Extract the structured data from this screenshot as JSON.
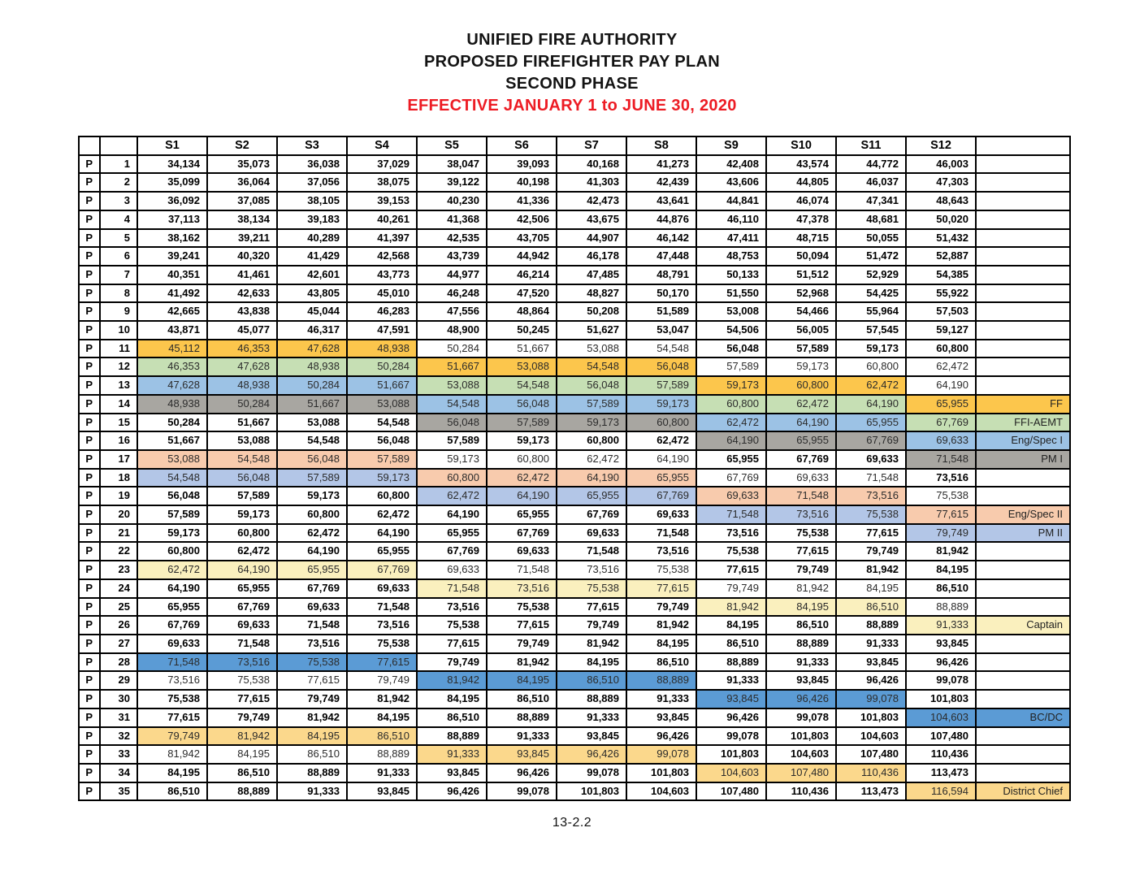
{
  "title": {
    "lines": [
      "UNIFIED FIRE AUTHORITY",
      "PROPOSED FIREFIGHTER PAY PLAN",
      "SECOND PHASE"
    ],
    "effective_line": "EFFECTIVE JANUARY 1 to JUNE 30, 2020",
    "effective_color": "#ED1C24"
  },
  "footer": {
    "page_number": "13-2.2"
  },
  "chart_data": {
    "type": "table",
    "title": "UNIFIED FIRE AUTHORITY PROPOSED FIREFIGHTER PAY PLAN SECOND PHASE — EFFECTIVE JANUARY 1 to JUNE 30, 2020",
    "row_header_letter": "P",
    "columns": [
      "S1",
      "S2",
      "S3",
      "S4",
      "S5",
      "S6",
      "S7",
      "S8",
      "S9",
      "S10",
      "S11",
      "S12"
    ],
    "color_map": {
      "F": "#FCC64C",
      "A": "#C6DFB4",
      "E": "#9CC2E5",
      "P": "#A8A6A1",
      "S": "#F8CBAD",
      "M": "#B3C6E7",
      "C": "#FAF0BE",
      "B": "#5B9BD5",
      "D": "#FBD88C"
    },
    "ranks": [
      {
        "code": "F",
        "name": "FF",
        "label_row": 14
      },
      {
        "code": "A",
        "name": "FFI-AEMT",
        "label_row": 15
      },
      {
        "code": "E",
        "name": "Eng/Spec I",
        "label_row": 16
      },
      {
        "code": "P",
        "name": "PM I",
        "label_row": 17
      },
      {
        "code": "S",
        "name": "Eng/Spec II",
        "label_row": 20
      },
      {
        "code": "M",
        "name": "PM II",
        "label_row": 21
      },
      {
        "code": "C",
        "name": "Captain",
        "label_row": 26
      },
      {
        "code": "B",
        "name": "BC/DC",
        "label_row": 31
      },
      {
        "code": "D",
        "name": "District Chief",
        "label_row": 35
      }
    ],
    "rows": [
      {
        "step": 1,
        "values": [
          34134,
          35073,
          36038,
          37029,
          38047,
          39093,
          40168,
          41273,
          42408,
          43574,
          44772,
          46003
        ],
        "colors": "............",
        "weights": "bbbbbbbbbbbb",
        "label": null,
        "label_color": null
      },
      {
        "step": 2,
        "values": [
          35099,
          36064,
          37056,
          38075,
          39122,
          40198,
          41303,
          42439,
          43606,
          44805,
          46037,
          47303
        ],
        "colors": "............",
        "weights": "bbbbbbbbbbbb",
        "label": null,
        "label_color": null
      },
      {
        "step": 3,
        "values": [
          36092,
          37085,
          38105,
          39153,
          40230,
          41336,
          42473,
          43641,
          44841,
          46074,
          47341,
          48643
        ],
        "colors": "............",
        "weights": "bbbbbbbbbbbb",
        "label": null,
        "label_color": null
      },
      {
        "step": 4,
        "values": [
          37113,
          38134,
          39183,
          40261,
          41368,
          42506,
          43675,
          44876,
          46110,
          47378,
          48681,
          50020
        ],
        "colors": "............",
        "weights": "bbbbbbbbbbbb",
        "label": null,
        "label_color": null
      },
      {
        "step": 5,
        "values": [
          38162,
          39211,
          40289,
          41397,
          42535,
          43705,
          44907,
          46142,
          47411,
          48715,
          50055,
          51432
        ],
        "colors": "............",
        "weights": "bbbbbbbbbbbb",
        "label": null,
        "label_color": null
      },
      {
        "step": 6,
        "values": [
          39241,
          40320,
          41429,
          42568,
          43739,
          44942,
          46178,
          47448,
          48753,
          50094,
          51472,
          52887
        ],
        "colors": "............",
        "weights": "bbbbbbbbbbbb",
        "label": null,
        "label_color": null
      },
      {
        "step": 7,
        "values": [
          40351,
          41461,
          42601,
          43773,
          44977,
          46214,
          47485,
          48791,
          50133,
          51512,
          52929,
          54385
        ],
        "colors": "............",
        "weights": "bbbbbbbbbbbb",
        "label": null,
        "label_color": null
      },
      {
        "step": 8,
        "values": [
          41492,
          42633,
          43805,
          45010,
          46248,
          47520,
          48827,
          50170,
          51550,
          52968,
          54425,
          55922
        ],
        "colors": "............",
        "weights": "bbbbbbbbbbbb",
        "label": null,
        "label_color": null
      },
      {
        "step": 9,
        "values": [
          42665,
          43838,
          45044,
          46283,
          47556,
          48864,
          50208,
          51589,
          53008,
          54466,
          55964,
          57503
        ],
        "colors": "............",
        "weights": "bbbbbbbbbbbb",
        "label": null,
        "label_color": null
      },
      {
        "step": 10,
        "values": [
          43871,
          45077,
          46317,
          47591,
          48900,
          50245,
          51627,
          53047,
          54506,
          56005,
          57545,
          59127
        ],
        "colors": "............",
        "weights": "bbbbbbbbbbbb",
        "label": null,
        "label_color": null
      },
      {
        "step": 11,
        "values": [
          45112,
          46353,
          47628,
          48938,
          50284,
          51667,
          53088,
          54548,
          56048,
          57589,
          59173,
          60800
        ],
        "colors": "FFFF........",
        "weights": "ttttttttbbbb",
        "label": null,
        "label_color": null
      },
      {
        "step": 12,
        "values": [
          46353,
          47628,
          48938,
          50284,
          51667,
          53088,
          54548,
          56048,
          57589,
          59173,
          60800,
          62472
        ],
        "colors": "AAAAFFFF....",
        "weights": "tttttttttttt",
        "label": null,
        "label_color": null
      },
      {
        "step": 13,
        "values": [
          47628,
          48938,
          50284,
          51667,
          53088,
          54548,
          56048,
          57589,
          59173,
          60800,
          62472,
          64190
        ],
        "colors": "EEEEAAAAFFF.",
        "weights": "tttttttttttt",
        "label": null,
        "label_color": null
      },
      {
        "step": 14,
        "values": [
          48938,
          50284,
          51667,
          53088,
          54548,
          56048,
          57589,
          59173,
          60800,
          62472,
          64190,
          65955
        ],
        "colors": "PPPPEEEEAAAF",
        "weights": "tttttttttttt",
        "label": "FF",
        "label_color": "F"
      },
      {
        "step": 15,
        "values": [
          50284,
          51667,
          53088,
          54548,
          56048,
          57589,
          59173,
          60800,
          62472,
          64190,
          65955,
          67769
        ],
        "colors": "....PPPPEEEA",
        "weights": "bbbbtttttttt",
        "label": "FFI-AEMT",
        "label_color": "A"
      },
      {
        "step": 16,
        "values": [
          51667,
          53088,
          54548,
          56048,
          57589,
          59173,
          60800,
          62472,
          64190,
          65955,
          67769,
          69633
        ],
        "colors": "........PPPE",
        "weights": "bbbbbbbbtttt",
        "label": "Eng/Spec I",
        "label_color": "E"
      },
      {
        "step": 17,
        "values": [
          53088,
          54548,
          56048,
          57589,
          59173,
          60800,
          62472,
          64190,
          65955,
          67769,
          69633,
          71548
        ],
        "colors": "SSSS.......P",
        "weights": "ttttttttbbbt",
        "label": "PM I",
        "label_color": "P"
      },
      {
        "step": 18,
        "values": [
          54548,
          56048,
          57589,
          59173,
          60800,
          62472,
          64190,
          65955,
          67769,
          69633,
          71548,
          73516
        ],
        "colors": "MMMMSSSS....",
        "weights": "tttttttttttb",
        "label": null,
        "label_color": null
      },
      {
        "step": 19,
        "values": [
          56048,
          57589,
          59173,
          60800,
          62472,
          64190,
          65955,
          67769,
          69633,
          71548,
          73516,
          75538
        ],
        "colors": "....MMMMSSS.",
        "weights": "bbbbtttttttt",
        "label": null,
        "label_color": null
      },
      {
        "step": 20,
        "values": [
          57589,
          59173,
          60800,
          62472,
          64190,
          65955,
          67769,
          69633,
          71548,
          73516,
          75538,
          77615
        ],
        "colors": "........MMMS",
        "weights": "bbbbbbbbtttt",
        "label": "Eng/Spec II",
        "label_color": "S"
      },
      {
        "step": 21,
        "values": [
          59173,
          60800,
          62472,
          64190,
          65955,
          67769,
          69633,
          71548,
          73516,
          75538,
          77615,
          79749
        ],
        "colors": "...........M",
        "weights": "bbbbbbbbbbbt",
        "label": "PM II",
        "label_color": "M"
      },
      {
        "step": 22,
        "values": [
          60800,
          62472,
          64190,
          65955,
          67769,
          69633,
          71548,
          73516,
          75538,
          77615,
          79749,
          81942
        ],
        "colors": "............",
        "weights": "bbbbbbbbbbbb",
        "label": null,
        "label_color": null
      },
      {
        "step": 23,
        "values": [
          62472,
          64190,
          65955,
          67769,
          69633,
          71548,
          73516,
          75538,
          77615,
          79749,
          81942,
          84195
        ],
        "colors": "CCCC........",
        "weights": "ttttttttbbbb",
        "label": null,
        "label_color": null
      },
      {
        "step": 24,
        "values": [
          64190,
          65955,
          67769,
          69633,
          71548,
          73516,
          75538,
          77615,
          79749,
          81942,
          84195,
          86510
        ],
        "colors": "....CCCC....",
        "weights": "bbbbtttttttb",
        "label": null,
        "label_color": null
      },
      {
        "step": 25,
        "values": [
          65955,
          67769,
          69633,
          71548,
          73516,
          75538,
          77615,
          79749,
          81942,
          84195,
          86510,
          88889
        ],
        "colors": "........CCC.",
        "weights": "bbbbbbbbtttt",
        "label": null,
        "label_color": null
      },
      {
        "step": 26,
        "values": [
          67769,
          69633,
          71548,
          73516,
          75538,
          77615,
          79749,
          81942,
          84195,
          86510,
          88889,
          91333
        ],
        "colors": "...........C",
        "weights": "bbbbbbbbbbbt",
        "label": "Captain",
        "label_color": "C"
      },
      {
        "step": 27,
        "values": [
          69633,
          71548,
          73516,
          75538,
          77615,
          79749,
          81942,
          84195,
          86510,
          88889,
          91333,
          93845
        ],
        "colors": "............",
        "weights": "bbbbbbbbbbbb",
        "label": null,
        "label_color": null
      },
      {
        "step": 28,
        "values": [
          71548,
          73516,
          75538,
          77615,
          79749,
          81942,
          84195,
          86510,
          88889,
          91333,
          93845,
          96426
        ],
        "colors": "BBBB........",
        "weights": "ttttbbbbbbbb",
        "label": null,
        "label_color": null
      },
      {
        "step": 29,
        "values": [
          73516,
          75538,
          77615,
          79749,
          81942,
          84195,
          86510,
          88889,
          91333,
          93845,
          96426,
          99078
        ],
        "colors": "....BBBB....",
        "weights": "ttttttttbbbb",
        "label": null,
        "label_color": null
      },
      {
        "step": 30,
        "values": [
          75538,
          77615,
          79749,
          81942,
          84195,
          86510,
          88889,
          91333,
          93845,
          96426,
          99078,
          101803
        ],
        "colors": "........BBB.",
        "weights": "bbbbbbbbtttb",
        "label": null,
        "label_color": null
      },
      {
        "step": 31,
        "values": [
          77615,
          79749,
          81942,
          84195,
          86510,
          88889,
          91333,
          93845,
          96426,
          99078,
          101803,
          104603
        ],
        "colors": "...........B",
        "weights": "bbbbbbbbbbbt",
        "label": "BC/DC",
        "label_color": "B"
      },
      {
        "step": 32,
        "values": [
          79749,
          81942,
          84195,
          86510,
          88889,
          91333,
          93845,
          96426,
          99078,
          101803,
          104603,
          107480
        ],
        "colors": "DDDD........",
        "weights": "ttttbbbbbbbb",
        "label": null,
        "label_color": null
      },
      {
        "step": 33,
        "values": [
          81942,
          84195,
          86510,
          88889,
          91333,
          93845,
          96426,
          99078,
          101803,
          104603,
          107480,
          110436
        ],
        "colors": "....DDDD....",
        "weights": "ttttttttbbbb",
        "label": null,
        "label_color": null
      },
      {
        "step": 34,
        "values": [
          84195,
          86510,
          88889,
          91333,
          93845,
          96426,
          99078,
          101803,
          104603,
          107480,
          110436,
          113473
        ],
        "colors": "........DDD.",
        "weights": "bbbbbbbbtttb",
        "label": null,
        "label_color": null
      },
      {
        "step": 35,
        "values": [
          86510,
          88889,
          91333,
          93845,
          96426,
          99078,
          101803,
          104603,
          107480,
          110436,
          113473,
          116594
        ],
        "colors": "...........D",
        "weights": "bbbbbbbbbbbt",
        "label": "District Chief",
        "label_color": "D"
      }
    ]
  }
}
